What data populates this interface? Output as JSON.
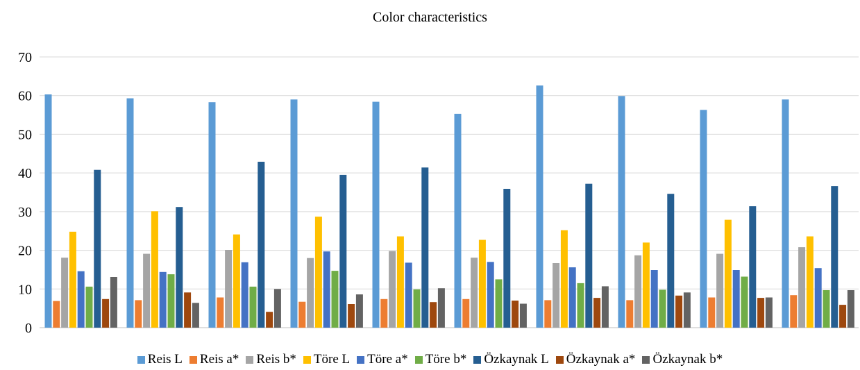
{
  "chart_data": {
    "type": "bar",
    "title": "Color characteristics",
    "xlabel": "",
    "ylabel": "",
    "ylim": [
      0,
      70
    ],
    "yticks": [
      0,
      10,
      20,
      30,
      40,
      50,
      60,
      70
    ],
    "grid": true,
    "legend": "bottom",
    "categories": [
      "",
      "",
      "",
      "",
      "",
      "",
      "",
      "",
      "",
      ""
    ],
    "series": [
      {
        "name": "Reis L",
        "color": "#5b9bd5",
        "values": [
          60.3,
          59.3,
          58.3,
          59.0,
          58.4,
          55.3,
          62.6,
          59.9,
          56.3,
          59.0
        ]
      },
      {
        "name": "Reis a*",
        "color": "#ed7d31",
        "values": [
          6.9,
          7.1,
          7.8,
          6.7,
          7.4,
          7.4,
          7.1,
          7.1,
          7.8,
          8.4
        ]
      },
      {
        "name": "Reis b*",
        "color": "#a5a5a5",
        "values": [
          18.1,
          19.1,
          20.1,
          18.0,
          19.8,
          18.1,
          16.7,
          18.7,
          19.1,
          20.8
        ]
      },
      {
        "name": "Töre L",
        "color": "#ffc000",
        "values": [
          24.8,
          30.1,
          24.1,
          28.7,
          23.6,
          22.7,
          25.2,
          22.0,
          27.9,
          23.6
        ]
      },
      {
        "name": "Töre a*",
        "color": "#4472c4",
        "values": [
          14.6,
          14.4,
          16.9,
          19.7,
          16.8,
          17.0,
          15.6,
          14.9,
          14.9,
          15.4
        ]
      },
      {
        "name": "Töre b*",
        "color": "#70ad47",
        "values": [
          10.6,
          13.8,
          10.6,
          14.7,
          9.9,
          12.5,
          11.5,
          9.8,
          13.2,
          9.7
        ]
      },
      {
        "name": "Özkaynak L",
        "color": "#255e91",
        "values": [
          40.8,
          31.2,
          42.9,
          39.5,
          41.4,
          35.9,
          37.2,
          34.6,
          31.4,
          36.6
        ]
      },
      {
        "name": "Özkaynak a*",
        "color": "#9e480e",
        "values": [
          7.4,
          9.1,
          4.1,
          6.1,
          6.6,
          7.0,
          7.7,
          8.3,
          7.7,
          5.9
        ]
      },
      {
        "name": "Özkaynak b*",
        "color": "#636363",
        "values": [
          13.1,
          6.4,
          10.0,
          8.6,
          10.2,
          6.2,
          10.7,
          9.1,
          7.8,
          9.7
        ]
      }
    ]
  }
}
